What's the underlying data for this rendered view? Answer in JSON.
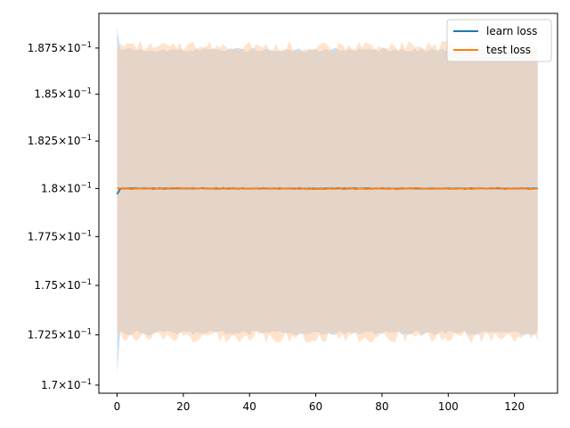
{
  "chart_data": {
    "type": "line",
    "title": "",
    "xlabel": "",
    "ylabel": "",
    "yscale": "log",
    "xlim": [
      -5.5,
      133
    ],
    "ylim": [
      0.1696,
      0.1894
    ],
    "xticks": [
      0,
      20,
      40,
      60,
      80,
      100,
      120
    ],
    "xtick_labels": [
      "0",
      "20",
      "40",
      "60",
      "80",
      "100",
      "120"
    ],
    "yticks": [
      0.17,
      0.1725,
      0.175,
      0.1775,
      0.18,
      0.1825,
      0.185,
      0.1875
    ],
    "ytick_labels": [
      {
        "mantissa": "1.7",
        "base": "10",
        "exp": "−1"
      },
      {
        "mantissa": "1.725",
        "base": "10",
        "exp": "−1"
      },
      {
        "mantissa": "1.75",
        "base": "10",
        "exp": "−1"
      },
      {
        "mantissa": "1.775",
        "base": "10",
        "exp": "−1"
      },
      {
        "mantissa": "1.8",
        "base": "10",
        "exp": "−1"
      },
      {
        "mantissa": "1.825",
        "base": "10",
        "exp": "−1"
      },
      {
        "mantissa": "1.85",
        "base": "10",
        "exp": "−1"
      },
      {
        "mantissa": "1.875",
        "base": "10",
        "exp": "−1"
      }
    ],
    "grid": false,
    "legend_position": "top-right",
    "x_range": [
      0,
      127
    ],
    "series": [
      {
        "name": "learn loss",
        "color": "#1f77b4",
        "band_color": "#9ec6ee",
        "mean": 0.18,
        "start_mean": 0.1797,
        "band_upper": 0.1874,
        "band_lower": 0.1726,
        "band_start_upper": 0.1886,
        "band_start_lower": 0.1706
      },
      {
        "name": "test loss",
        "color": "#ff7f0e",
        "band_color": "#ffc79a",
        "mean": 0.18,
        "start_mean": 0.18,
        "band_upper": 0.1876,
        "band_lower": 0.1724,
        "band_start_upper": 0.1874,
        "band_start_lower": 0.1726
      }
    ]
  }
}
